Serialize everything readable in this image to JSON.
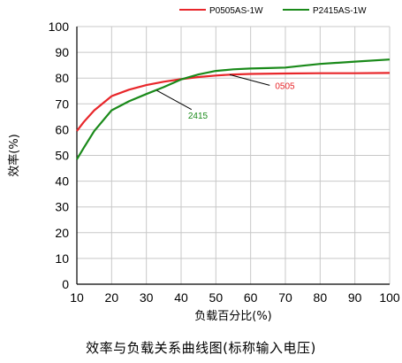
{
  "chart_data": {
    "type": "line",
    "xlabel": "负载百分比(%)",
    "ylabel": "效率(%)",
    "xlim": [
      10,
      100
    ],
    "ylim": [
      0,
      100
    ],
    "xticks": [
      10,
      20,
      30,
      40,
      50,
      60,
      70,
      80,
      90,
      100
    ],
    "yticks": [
      0,
      10,
      20,
      30,
      40,
      50,
      60,
      70,
      80,
      90,
      100
    ],
    "grid": true,
    "legend_position": "top-right",
    "series": [
      {
        "name": "P0505AS-1W",
        "color": "#e8262a",
        "x": [
          10,
          12,
          15,
          20,
          25,
          30,
          35,
          40,
          45,
          50,
          55,
          60,
          70,
          80,
          90,
          100
        ],
        "y": [
          59.5,
          63,
          67.5,
          73,
          75.5,
          77.3,
          78.6,
          79.6,
          80.4,
          81.0,
          81.4,
          81.6,
          81.8,
          81.9,
          81.9,
          82.0
        ]
      },
      {
        "name": "P2415AS-1W",
        "color": "#1a8a1a",
        "x": [
          10,
          12,
          15,
          20,
          25,
          30,
          35,
          40,
          45,
          50,
          55,
          60,
          65,
          70,
          75,
          80,
          90,
          100
        ],
        "y": [
          48.5,
          53,
          59.5,
          67.5,
          71,
          73.8,
          76.5,
          79.5,
          81.4,
          82.8,
          83.4,
          83.7,
          83.9,
          84.1,
          84.8,
          85.5,
          86.4,
          87.2
        ]
      }
    ],
    "annotations": [
      {
        "text": "0505",
        "x": 65,
        "y": 81.5,
        "color": "#e8262a"
      },
      {
        "text": "2415",
        "x": 31.5,
        "y": 77.5,
        "color": "#1a8a1a"
      }
    ]
  },
  "caption": "效率与负载关系曲线图(标称输入电压)"
}
